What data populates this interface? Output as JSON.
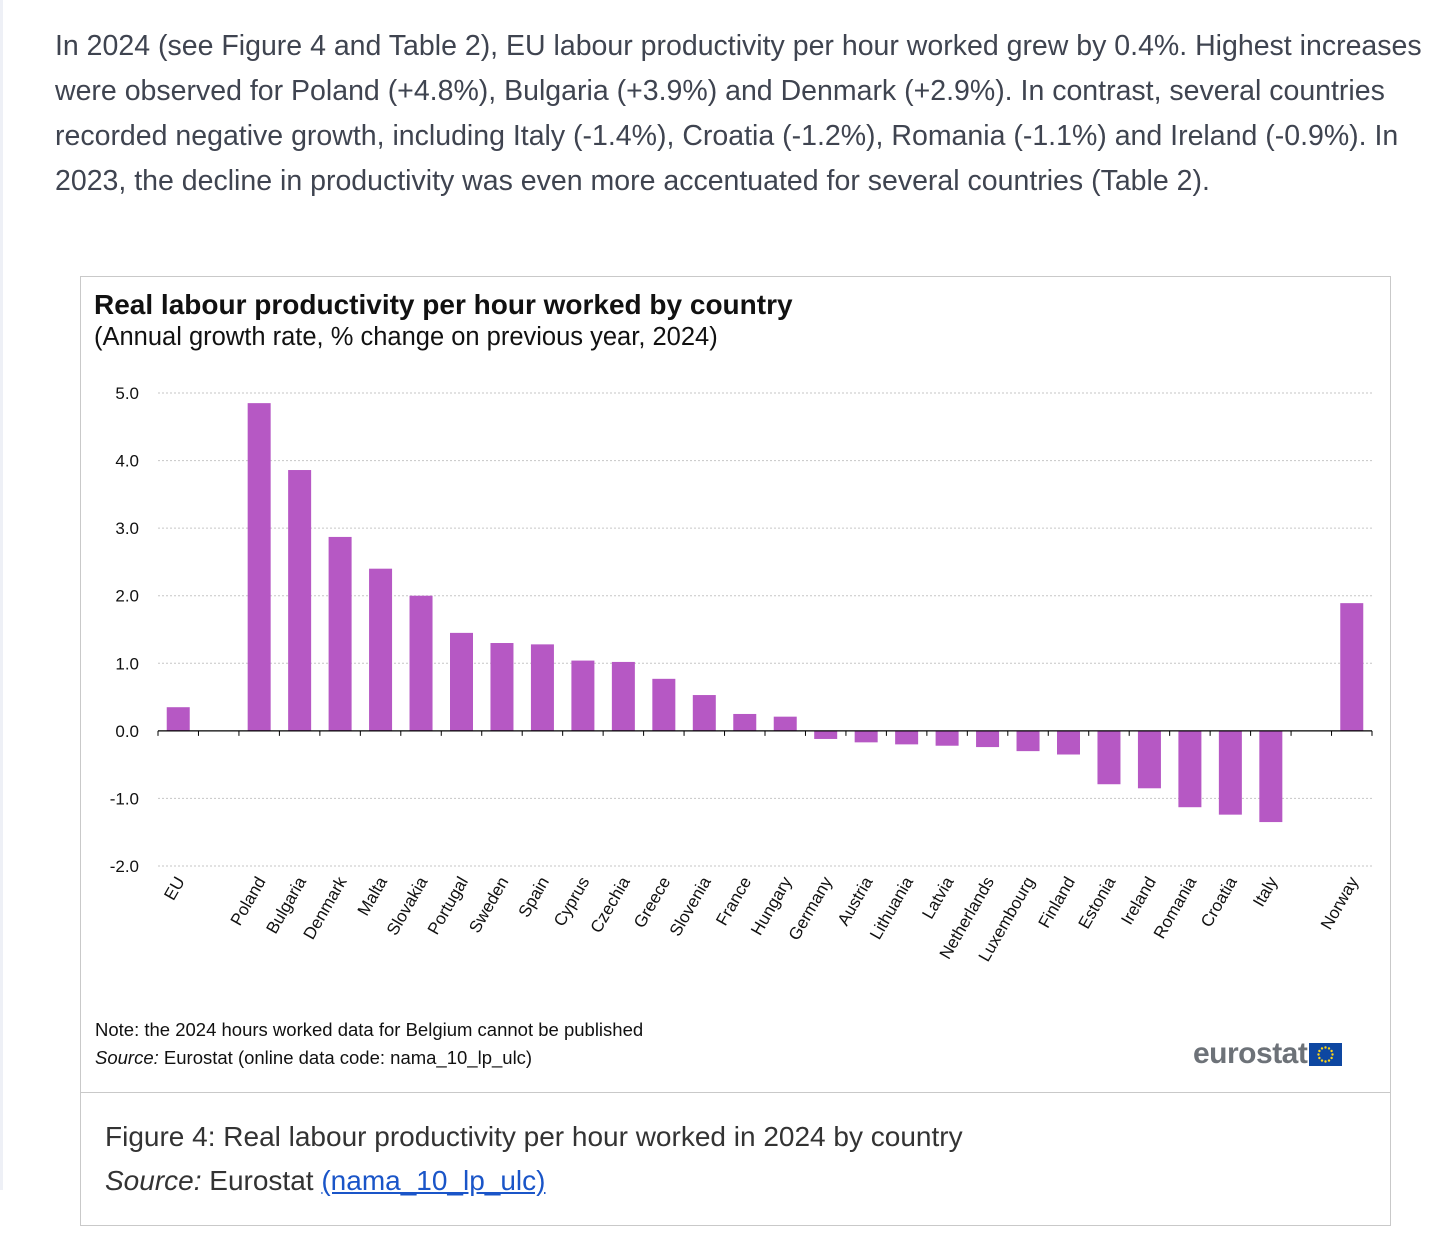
{
  "intro_text": "In 2024 (see Figure 4 and Table 2), EU labour productivity per hour worked grew by 0.4%. Highest increases were observed for Poland (+4.8%), Bulgaria (+3.9%) and Denmark (+2.9%). In contrast, several countries recorded negative growth, including Italy (-1.4%), Croatia (-1.2%), Romania (-1.1%) and Ireland (-0.9%). In 2023, the decline in productivity was even more accentuated for several countries (Table 2).",
  "chart_data": {
    "type": "bar",
    "title": "Real labour productivity per hour worked by country",
    "subtitle": "(Annual growth rate, % change on previous year, 2024)",
    "xlabel": "",
    "ylabel": "",
    "ylim": [
      -2.0,
      5.0
    ],
    "yticks": [
      "5.0",
      "4.0",
      "3.0",
      "2.0",
      "1.0",
      "0.0",
      "-1.0",
      "-2.0"
    ],
    "grid": true,
    "bar_color": "#b658c4",
    "categories": [
      "EU",
      "",
      "Poland",
      "Bulgaria",
      "Denmark",
      "Malta",
      "Slovakia",
      "Portugal",
      "Sweden",
      "Spain",
      "Cyprus",
      "Czechia",
      "Greece",
      "Slovenia",
      "France",
      "Hungary",
      "Germany",
      "Austria",
      "Lithuania",
      "Latvia",
      "Netherlands",
      "Luxembourg",
      "Finland",
      "Estonia",
      "Ireland",
      "Romania",
      "Croatia",
      "Italy",
      "",
      "Norway"
    ],
    "values": [
      0.35,
      null,
      4.85,
      3.86,
      2.87,
      2.4,
      2.0,
      1.45,
      1.3,
      1.28,
      1.04,
      1.02,
      0.77,
      0.53,
      0.25,
      0.21,
      -0.12,
      -0.17,
      -0.2,
      -0.22,
      -0.24,
      -0.3,
      -0.35,
      -0.79,
      -0.85,
      -1.13,
      -1.24,
      -1.35,
      null,
      1.89
    ]
  },
  "note": "Note: the 2024 hours worked data for Belgium  cannot be published",
  "source_label": "Source:",
  "source_text": " Eurostat (online data code: nama_10_lp_ulc)",
  "logo_text": "eurostat",
  "caption": {
    "text": "Figure 4: Real labour productivity per hour worked in 2024 by country",
    "source_label": "Source:",
    "source_text": " Eurostat ",
    "link_text": "(nama_10_lp_ulc)"
  }
}
